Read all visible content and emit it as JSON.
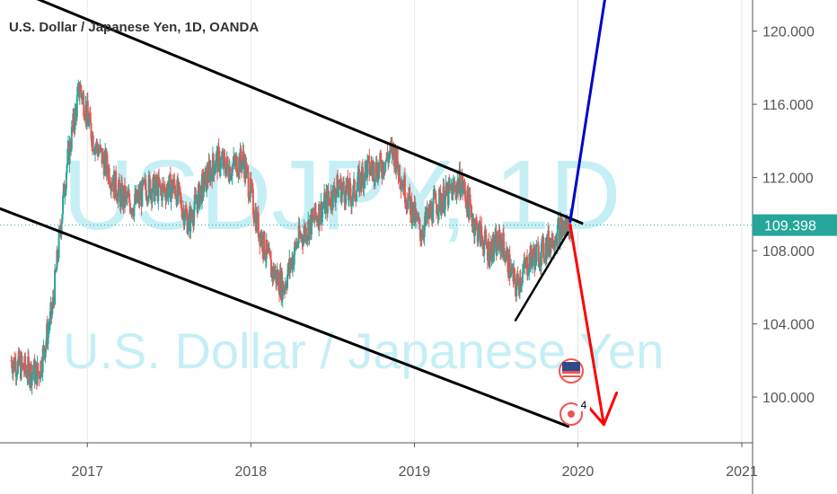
{
  "header": {
    "title": "U.S. Dollar / Japanese Yen, 1D, OANDA"
  },
  "watermark": {
    "symbol": "USDJPY, 1D",
    "name": "U.S. Dollar / Japanese Yen"
  },
  "price_label": {
    "value": "109.398",
    "color": "#26a69a"
  },
  "colors": {
    "up": "#26a69a",
    "down": "#ef5350",
    "channel": "#000000",
    "bull_arrow": "#0000cc",
    "bear_arrow": "#ff0000"
  },
  "events": {
    "flag_icon": "us-flag-icon",
    "event_icon": "economic-event-icon",
    "event_count": "4"
  },
  "chart_data": {
    "type": "candlestick",
    "title": "U.S. Dollar / Japanese Yen, 1D, OANDA",
    "xlabel": "",
    "ylabel": "",
    "xlim": [
      "2016-06-20",
      "2021-01-25"
    ],
    "ylim": [
      97.5,
      121.7
    ],
    "x_ticks": [
      "2017",
      "2018",
      "2019",
      "2020",
      "2021"
    ],
    "y_ticks": [
      "100.000",
      "104.000",
      "108.000",
      "112.000",
      "116.000",
      "120.000"
    ],
    "last_price": 109.398,
    "series": [
      {
        "name": "",
        "monthly_close": [
          [
            "2016-07",
            102.0
          ],
          [
            "2016-08",
            101.5
          ],
          [
            "2016-09",
            101.3
          ],
          [
            "2016-10",
            104.8
          ],
          [
            "2016-11",
            112.5
          ],
          [
            "2016-12",
            117.0
          ],
          [
            "2017-01",
            114.0
          ],
          [
            "2017-02",
            112.5
          ],
          [
            "2017-03",
            111.0
          ],
          [
            "2017-04",
            110.5
          ],
          [
            "2017-05",
            111.5
          ],
          [
            "2017-06",
            111.3
          ],
          [
            "2017-07",
            111.5
          ],
          [
            "2017-08",
            109.5
          ],
          [
            "2017-09",
            111.5
          ],
          [
            "2017-10",
            113.0
          ],
          [
            "2017-11",
            112.5
          ],
          [
            "2017-12",
            113.0
          ],
          [
            "2018-01",
            109.5
          ],
          [
            "2018-02",
            107.0
          ],
          [
            "2018-03",
            106.0
          ],
          [
            "2018-04",
            108.5
          ],
          [
            "2018-05",
            109.5
          ],
          [
            "2018-06",
            110.5
          ],
          [
            "2018-07",
            111.5
          ],
          [
            "2018-08",
            111.0
          ],
          [
            "2018-09",
            112.5
          ],
          [
            "2018-10",
            112.5
          ],
          [
            "2018-11",
            113.5
          ],
          [
            "2018-12",
            111.0
          ],
          [
            "2019-01",
            109.0
          ],
          [
            "2019-02",
            110.5
          ],
          [
            "2019-03",
            111.0
          ],
          [
            "2019-04",
            111.8
          ],
          [
            "2019-05",
            109.5
          ],
          [
            "2019-06",
            108.0
          ],
          [
            "2019-07",
            108.5
          ],
          [
            "2019-08",
            106.0
          ],
          [
            "2019-09",
            107.5
          ],
          [
            "2019-10",
            108.0
          ],
          [
            "2019-11",
            109.0
          ],
          [
            "2019-12",
            109.4
          ]
        ]
      }
    ],
    "annotations": [
      {
        "type": "channel-upper",
        "from": [
          "2016-06-20",
          122.6
        ],
        "to": [
          "2020-01-10",
          109.5
        ]
      },
      {
        "type": "channel-lower",
        "from": [
          "2016-06-20",
          110.3
        ],
        "to": [
          "2019-12-10",
          98.4
        ]
      },
      {
        "type": "support-line",
        "from": [
          "2019-08-15",
          104.2
        ],
        "to": [
          "2019-12-10",
          109.0
        ]
      },
      {
        "type": "bullish-projection",
        "from": [
          "2019-12-15",
          109.6
        ],
        "to": [
          "2020-03-01",
          121.7
        ]
      },
      {
        "type": "bearish-projection",
        "from": [
          "2019-12-15",
          109.4
        ],
        "to": [
          "2020-02-28",
          98.5
        ]
      }
    ]
  }
}
